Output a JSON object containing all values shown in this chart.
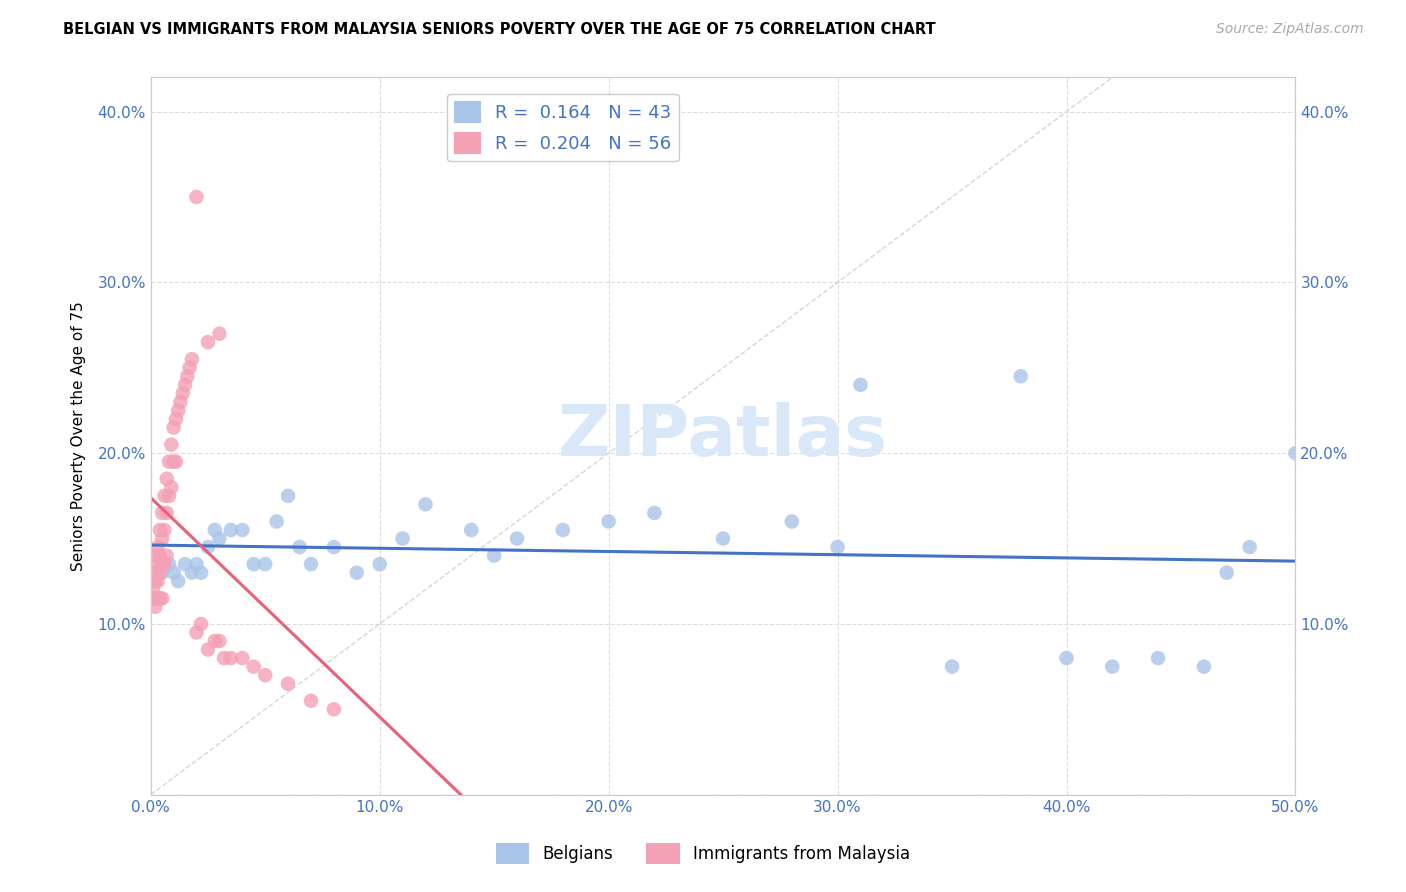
{
  "title": "BELGIAN VS IMMIGRANTS FROM MALAYSIA SENIORS POVERTY OVER THE AGE OF 75 CORRELATION CHART",
  "source": "Source: ZipAtlas.com",
  "ylabel": "Seniors Poverty Over the Age of 75",
  "xlim": [
    0.0,
    0.5
  ],
  "ylim": [
    0.0,
    0.42
  ],
  "xticks": [
    0.0,
    0.1,
    0.2,
    0.3,
    0.4,
    0.5
  ],
  "yticks": [
    0.0,
    0.1,
    0.2,
    0.3,
    0.4
  ],
  "xtick_labels": [
    "0.0%",
    "10.0%",
    "20.0%",
    "30.0%",
    "40.0%",
    "50.0%"
  ],
  "ytick_labels": [
    "",
    "10.0%",
    "20.0%",
    "30.0%",
    "40.0%"
  ],
  "blue_R": 0.164,
  "blue_N": 43,
  "pink_R": 0.204,
  "pink_N": 56,
  "blue_color": "#a8c4e8",
  "pink_color": "#f4a0b5",
  "blue_line_color": "#4472c4",
  "pink_line_color": "#e8607a",
  "diagonal_color": "#cccccc",
  "watermark_color": "#d8e8f8",
  "blue_points_x": [
    0.005,
    0.008,
    0.01,
    0.012,
    0.015,
    0.018,
    0.02,
    0.022,
    0.025,
    0.028,
    0.03,
    0.035,
    0.04,
    0.045,
    0.05,
    0.055,
    0.06,
    0.065,
    0.07,
    0.08,
    0.09,
    0.1,
    0.11,
    0.12,
    0.14,
    0.15,
    0.16,
    0.18,
    0.2,
    0.22,
    0.25,
    0.28,
    0.3,
    0.31,
    0.35,
    0.38,
    0.4,
    0.42,
    0.44,
    0.46,
    0.47,
    0.48,
    0.5
  ],
  "blue_points_y": [
    0.13,
    0.135,
    0.13,
    0.125,
    0.135,
    0.13,
    0.135,
    0.13,
    0.145,
    0.155,
    0.15,
    0.155,
    0.155,
    0.135,
    0.135,
    0.16,
    0.175,
    0.145,
    0.135,
    0.145,
    0.13,
    0.135,
    0.15,
    0.17,
    0.155,
    0.14,
    0.15,
    0.155,
    0.16,
    0.165,
    0.15,
    0.16,
    0.145,
    0.24,
    0.075,
    0.245,
    0.08,
    0.075,
    0.08,
    0.075,
    0.13,
    0.145,
    0.2
  ],
  "pink_points_x": [
    0.001,
    0.001,
    0.001,
    0.002,
    0.002,
    0.002,
    0.002,
    0.003,
    0.003,
    0.003,
    0.003,
    0.004,
    0.004,
    0.004,
    0.004,
    0.005,
    0.005,
    0.005,
    0.005,
    0.006,
    0.006,
    0.006,
    0.007,
    0.007,
    0.007,
    0.008,
    0.008,
    0.009,
    0.009,
    0.01,
    0.01,
    0.011,
    0.011,
    0.012,
    0.013,
    0.014,
    0.015,
    0.016,
    0.017,
    0.018,
    0.02,
    0.022,
    0.025,
    0.028,
    0.03,
    0.032,
    0.035,
    0.04,
    0.045,
    0.05,
    0.06,
    0.07,
    0.08,
    0.02,
    0.025,
    0.03
  ],
  "pink_points_y": [
    0.13,
    0.12,
    0.115,
    0.14,
    0.125,
    0.115,
    0.11,
    0.145,
    0.135,
    0.125,
    0.115,
    0.155,
    0.14,
    0.13,
    0.115,
    0.165,
    0.15,
    0.135,
    0.115,
    0.175,
    0.155,
    0.135,
    0.185,
    0.165,
    0.14,
    0.195,
    0.175,
    0.205,
    0.18,
    0.215,
    0.195,
    0.22,
    0.195,
    0.225,
    0.23,
    0.235,
    0.24,
    0.245,
    0.25,
    0.255,
    0.095,
    0.1,
    0.085,
    0.09,
    0.09,
    0.08,
    0.08,
    0.08,
    0.075,
    0.07,
    0.065,
    0.055,
    0.05,
    0.35,
    0.265,
    0.27
  ]
}
